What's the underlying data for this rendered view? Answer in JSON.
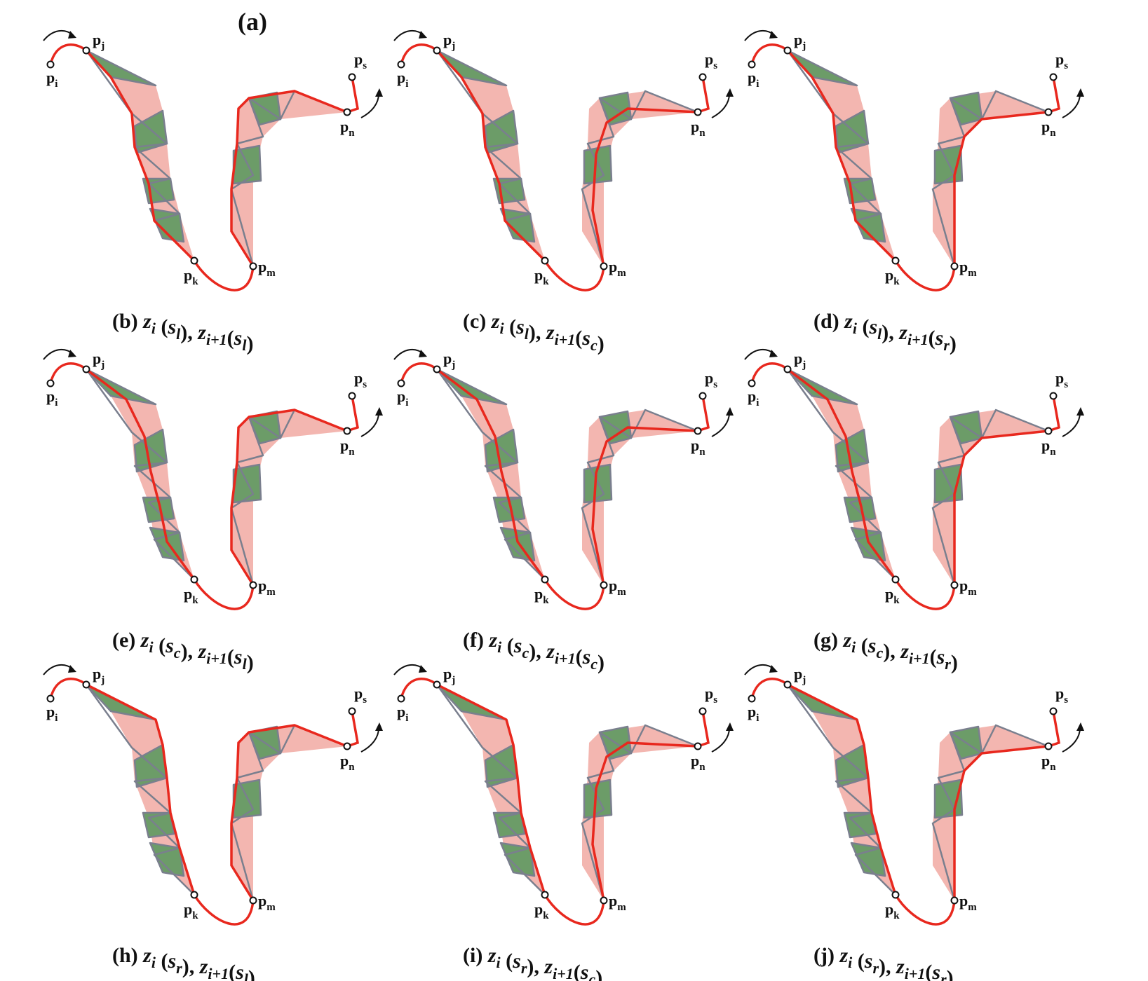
{
  "figure_label": "(a)",
  "colors": {
    "curve": "#e8281e",
    "region_pink": "#f3b6b0",
    "region_green": "#6c9c68",
    "outline_gray": "#7a7f8e",
    "node_fill": "#ffffff",
    "node_stroke": "#111111"
  },
  "point_labels": {
    "pi": "p",
    "pi_sub": "i",
    "pj": "p",
    "pj_sub": "j",
    "pk": "p",
    "pk_sub": "k",
    "pm": "p",
    "pm_sub": "m",
    "pn": "p",
    "pn_sub": "n",
    "ps": "p",
    "ps_sub": "s"
  },
  "panels": [
    {
      "tag": "(b)",
      "zi_sub": "i",
      "zi_arg": "s",
      "zi_arg_sub": "l",
      "zn_sub": "i+1",
      "zn_arg": "s",
      "zn_arg_sub": "l",
      "left_path": "l",
      "right_path": "l"
    },
    {
      "tag": "(c)",
      "zi_sub": "i",
      "zi_arg": "s",
      "zi_arg_sub": "l",
      "zn_sub": "i+1",
      "zn_arg": "s",
      "zn_arg_sub": "c",
      "left_path": "l",
      "right_path": "c"
    },
    {
      "tag": "(d)",
      "zi_sub": "i",
      "zi_arg": "s",
      "zi_arg_sub": "l",
      "zn_sub": "i+1",
      "zn_arg": "s",
      "zn_arg_sub": "r",
      "left_path": "l",
      "right_path": "r"
    },
    {
      "tag": "(e)",
      "zi_sub": "i",
      "zi_arg": "s",
      "zi_arg_sub": "c",
      "zn_sub": "i+1",
      "zn_arg": "s",
      "zn_arg_sub": "l",
      "left_path": "c",
      "right_path": "l"
    },
    {
      "tag": "(f)",
      "zi_sub": "i",
      "zi_arg": "s",
      "zi_arg_sub": "c",
      "zn_sub": "i+1",
      "zn_arg": "s",
      "zn_arg_sub": "c",
      "left_path": "c",
      "right_path": "c"
    },
    {
      "tag": "(g)",
      "zi_sub": "i",
      "zi_arg": "s",
      "zi_arg_sub": "c",
      "zn_sub": "i+1",
      "zn_arg": "s",
      "zn_arg_sub": "r",
      "left_path": "c",
      "right_path": "r"
    },
    {
      "tag": "(h)",
      "zi_sub": "i",
      "zi_arg": "s",
      "zi_arg_sub": "r",
      "zn_sub": "i+1",
      "zn_arg": "s",
      "zn_arg_sub": "l",
      "left_path": "r",
      "right_path": "l"
    },
    {
      "tag": "(i)",
      "zi_sub": "i",
      "zi_arg": "s",
      "zi_arg_sub": "r",
      "zn_sub": "i+1",
      "zn_arg": "s",
      "zn_arg_sub": "c",
      "left_path": "r",
      "right_path": "c"
    },
    {
      "tag": "(j)",
      "zi_sub": "i",
      "zi_arg": "s",
      "zi_arg_sub": "r",
      "zn_sub": "i+1",
      "zn_arg": "s",
      "zn_arg_sub": "r",
      "left_path": "r",
      "right_path": "r"
    }
  ]
}
